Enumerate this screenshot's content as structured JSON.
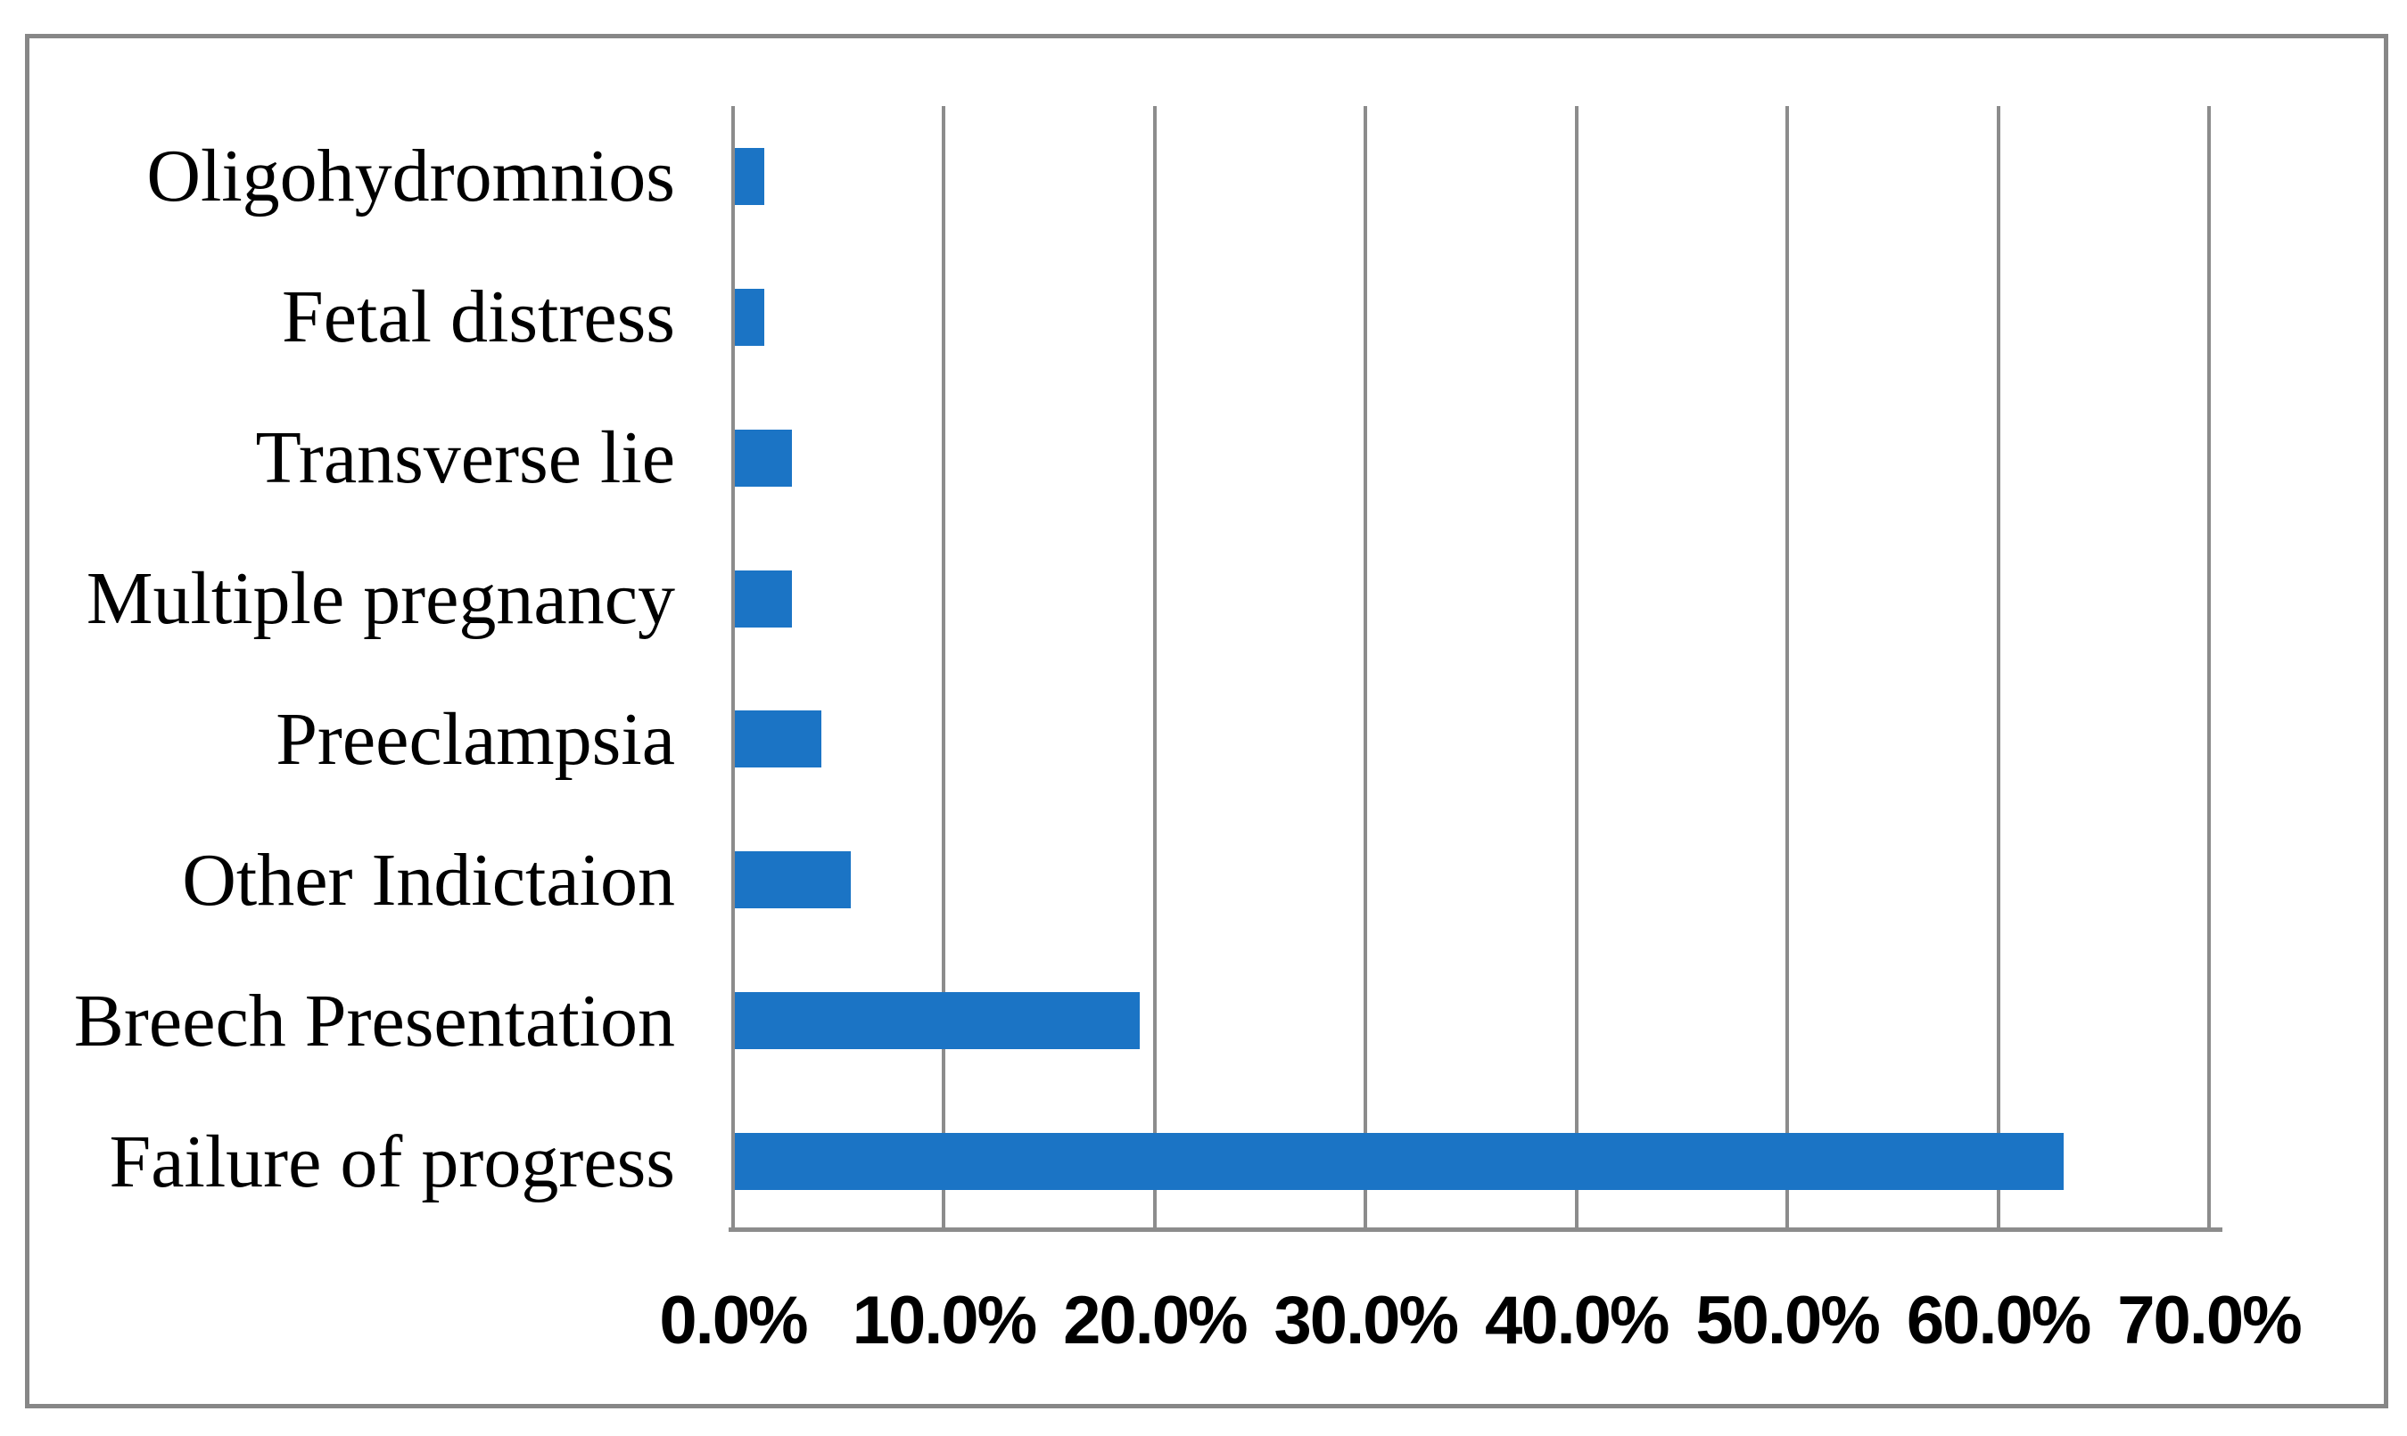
{
  "chart_data": {
    "type": "bar",
    "orientation": "horizontal",
    "title": "",
    "xlabel": "",
    "ylabel": "",
    "categories_top_to_bottom": [
      "Oligohydromnios",
      "Fetal distress",
      "Transverse lie",
      "Multiple pregnancy",
      "Preeclampsia",
      "Other Indictaion",
      "Breech Presentation",
      "Failure of progress"
    ],
    "values_percent": [
      1.4,
      1.4,
      2.7,
      2.7,
      4.1,
      5.5,
      19.2,
      63.0
    ],
    "unit": "%",
    "xlim": [
      0,
      70
    ],
    "x_tick_values": [
      0,
      10,
      20,
      30,
      40,
      50,
      60,
      70
    ],
    "x_tick_labels": [
      "0.0%",
      "10.0%",
      "20.0%",
      "30.0%",
      "40.0%",
      "50.0%",
      "60.0%",
      "70.0%"
    ],
    "grid": "vertical-gridlines-on",
    "legend": "none",
    "data_labels": "none"
  },
  "colors": {
    "bar": "#1b74c5",
    "gridline": "#8c8c8c",
    "frame_border": "#878787",
    "text": "#000000",
    "background": "#ffffff"
  }
}
